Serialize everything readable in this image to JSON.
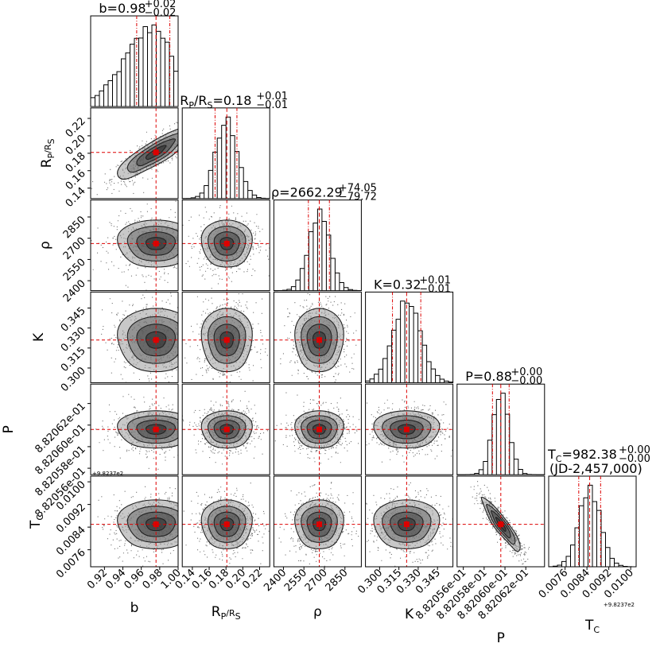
{
  "chart_data": {
    "type": "corner",
    "parameters": [
      {
        "key": "b",
        "label": "b",
        "title": {
          "main": "b=0.98",
          "sup": "+0.02",
          "sub": "−0.02"
        },
        "range": [
          0.905,
          1.0
        ],
        "median": 0.976,
        "q16": 0.955,
        "q84": 0.991,
        "ticks": [
          "0.92",
          "0.94",
          "0.96",
          "0.98",
          "1.00"
        ],
        "tick_values": [
          0.92,
          0.94,
          0.96,
          0.98,
          1.0
        ]
      },
      {
        "key": "rprs",
        "label": "R",
        "label_sub": "P",
        "label_rest": "/R",
        "label_sub2": "S",
        "title": {
          "main": "R",
          "sub1": "P",
          "mid": "/R",
          "sub2": "S",
          "tail": "=0.18",
          "sup": "+0.01",
          "sub": "−0.01"
        },
        "range": [
          0.128,
          0.232
        ],
        "median": 0.181,
        "q16": 0.167,
        "q84": 0.193,
        "ticks": [
          "0.14",
          "0.16",
          "0.18",
          "0.20",
          "0.22"
        ],
        "tick_values": [
          0.14,
          0.16,
          0.18,
          0.2,
          0.22
        ]
      },
      {
        "key": "rho",
        "label": "ρ",
        "title": {
          "main": "ρ=2662.29",
          "sup": "+74.05",
          "sub": "−79.72"
        },
        "range": [
          2330,
          2970
        ],
        "median": 2662.29,
        "q16": 2582.57,
        "q84": 2736.34,
        "ticks": [
          "2400",
          "2550",
          "2700",
          "2850"
        ],
        "tick_values": [
          2400,
          2550,
          2700,
          2850
        ]
      },
      {
        "key": "K",
        "label": "K",
        "title": {
          "main": "K=0.32",
          "sup": "+0.01",
          "sub": "−0.01"
        },
        "range": [
          0.289,
          0.357
        ],
        "median": 0.321,
        "q16": 0.31,
        "q84": 0.332,
        "ticks": [
          "0.300",
          "0.315",
          "0.330",
          "0.345"
        ],
        "tick_values": [
          0.3,
          0.315,
          0.33,
          0.345
        ]
      },
      {
        "key": "P",
        "label": "P",
        "title": {
          "main": "P=0.88",
          "sup": "+0.00",
          "sub": "−0.00"
        },
        "range": [
          0.8820554,
          0.8820638
        ],
        "median": 0.8820596,
        "q16": 0.8820588,
        "q84": 0.8820604,
        "ticks": [
          "8.82056e-01",
          "8.82058e-01",
          "8.82060e-01",
          "8.82062e-01"
        ],
        "tick_values": [
          0.882056,
          0.882058,
          0.88206,
          0.882062
        ]
      },
      {
        "key": "Tc",
        "label": "T",
        "label_sub": "C",
        "offset": "+9.8237e2",
        "title": {
          "main": "T",
          "sub1": "C",
          "tail": "=982.38",
          "sup": "+0.00",
          "sub": "−0.00",
          "line2": "(JD-2,457,000)"
        },
        "range": [
          0.007,
          0.0102
        ],
        "median": 0.0085,
        "q16": 0.0081,
        "q84": 0.0089,
        "ticks": [
          "0.0076",
          "0.0084",
          "0.0092",
          "0.0100"
        ],
        "tick_values": [
          0.0076,
          0.0084,
          0.0092,
          0.01
        ]
      }
    ],
    "correlations": [
      {
        "x": "b",
        "y": "rprs",
        "rho": 0.85
      },
      {
        "x": "P",
        "y": "Tc",
        "rho": -0.9
      }
    ],
    "histogram_bins": 20,
    "quantiles": [
      0.16,
      0.5,
      0.84
    ],
    "colors": {
      "contour": "#222222",
      "points": "#000000",
      "truth": "#dd0000",
      "quantile": "#dd0000"
    }
  }
}
